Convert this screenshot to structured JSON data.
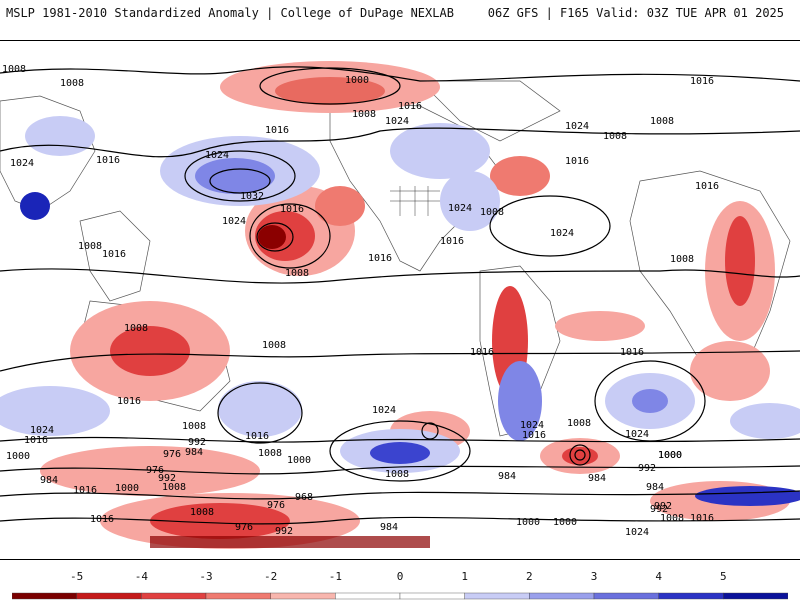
{
  "header": {
    "title_left": "MSLP 1981-2010 Standardized Anomaly | College of DuPage NEXLAB",
    "title_right": "06Z GFS | F165 Valid: 03Z TUE APR 01 2025"
  },
  "map": {
    "contour_labels": [
      "1008",
      "1008",
      "1000",
      "1016",
      "1024",
      "1008",
      "1016",
      "1024",
      "1016",
      "1008",
      "1024",
      "1032",
      "1024",
      "1016",
      "1016",
      "1008",
      "1008",
      "1024",
      "1024",
      "1016",
      "1008",
      "1016",
      "1016",
      "1016",
      "1024",
      "1008",
      "1016",
      "1008",
      "1008",
      "1016",
      "1008",
      "1016",
      "1016",
      "1024",
      "1016",
      "1024",
      "1008",
      "1008",
      "1016",
      "1008",
      "1024",
      "1016",
      "1024",
      "1000",
      "992",
      "976",
      "984",
      "1008",
      "1000",
      "992",
      "984",
      "1000",
      "976",
      "1008",
      "984",
      "1016",
      "1000",
      "968",
      "976",
      "1016",
      "1008",
      "992",
      "1000",
      "976",
      "992",
      "984",
      "984",
      "992",
      "1000",
      "992",
      "984",
      "1000",
      "1008",
      "1016",
      "1024"
    ],
    "colors": {
      "negative_strong": "#8b0000",
      "negative_mid": "#dd3030",
      "negative_light": "#f7a6a0",
      "positive_light": "#c8ccf5",
      "positive_mid": "#7f86e6",
      "positive_strong": "#1a25b8"
    }
  },
  "colorbar": {
    "ticks": [
      "-5",
      "-4",
      "-3",
      "-2",
      "-1",
      "0",
      "1",
      "2",
      "3",
      "4",
      "5"
    ],
    "colors": [
      "#7a0000",
      "#c41a1a",
      "#e04040",
      "#ef7a70",
      "#f8b6ae",
      "#ffffff",
      "#ffffff",
      "#c8ccf5",
      "#9aa0ec",
      "#6a70dd",
      "#2b33c4",
      "#0b129a"
    ]
  }
}
